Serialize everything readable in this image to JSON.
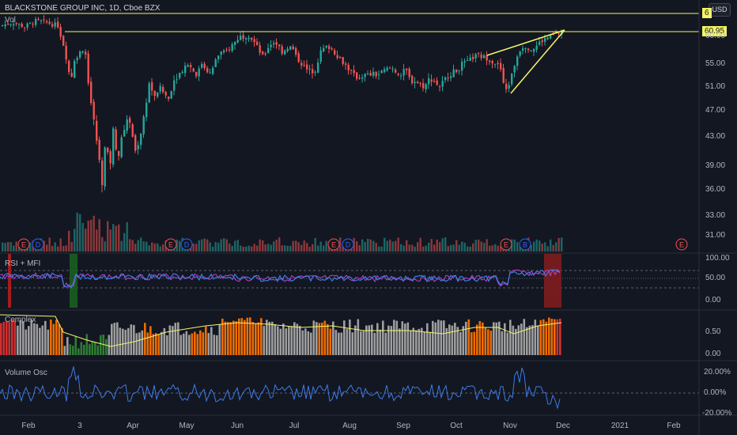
{
  "header": {
    "symbol_title": "BLACKSTONE GROUP INC, 1D, Cboe BZX",
    "currency_button": "USD",
    "vol_label": "Vol"
  },
  "price_axis": {
    "labels": [
      "60.00",
      "55.00",
      "51.00",
      "47.00",
      "43.00",
      "39.00",
      "36.00",
      "33.00",
      "31.00"
    ],
    "highlight_labels": [
      "60.95",
      "6"
    ]
  },
  "panes": {
    "rsi": {
      "title": "RSI + MFI",
      "axis": [
        "100.00",
        "50.00",
        "0.00"
      ]
    },
    "complex": {
      "title": "Complex",
      "axis": [
        "0.50",
        "0.00"
      ]
    },
    "volosc": {
      "title": "Volume Osc",
      "axis": [
        "20.00%",
        "0.00%",
        "-20.00%"
      ]
    }
  },
  "time_axis": {
    "labels": [
      "Feb",
      "3",
      "Apr",
      "May",
      "Jun",
      "Jul",
      "Aug",
      "Sep",
      "Oct",
      "Nov",
      "Dec",
      "2021",
      "Feb"
    ]
  },
  "event_markers": [
    {
      "type": "E"
    },
    {
      "type": "D"
    },
    {
      "type": "E"
    },
    {
      "type": "D"
    },
    {
      "type": "E"
    },
    {
      "type": "D"
    },
    {
      "type": "E"
    },
    {
      "type": "B"
    },
    {
      "type": "E"
    }
  ],
  "colors": {
    "background": "#131722",
    "up": "#26a69a",
    "down": "#ef5350",
    "drawing": "#f5f566",
    "rsi": "#3d7be8",
    "mfi": "#c040d0"
  },
  "chart_data": {
    "type": "candlestick",
    "symbol": "BLACKSTONE GROUP INC",
    "interval": "1D",
    "x_range": [
      "2020-01",
      "2021-02"
    ],
    "ylim": [
      30,
      63
    ],
    "key_levels": [
      60.95
    ]
  }
}
